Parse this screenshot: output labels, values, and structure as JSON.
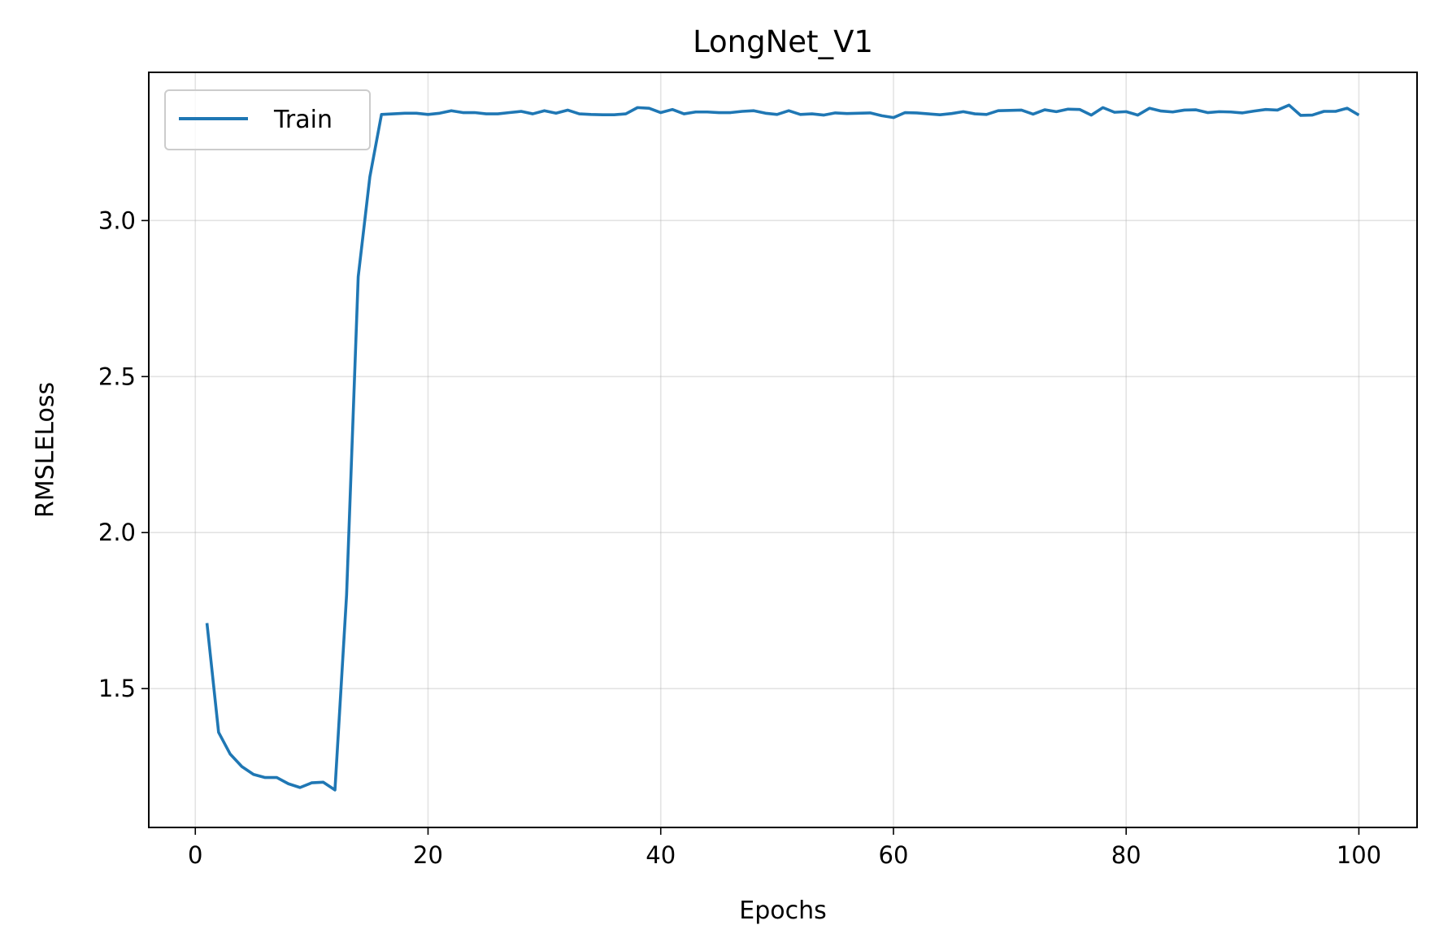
{
  "chart_data": {
    "type": "line",
    "title": "LongNet_V1",
    "xlabel": "Epochs",
    "ylabel": "RMSLELoss",
    "xlim": [
      -4,
      105
    ],
    "ylim": [
      1.055,
      3.475
    ],
    "xticks": [
      0,
      20,
      40,
      60,
      80,
      100
    ],
    "yticks": [
      1.5,
      2.0,
      2.5,
      3.0
    ],
    "xtick_labels": [
      "0",
      "20",
      "40",
      "60",
      "80",
      "100"
    ],
    "ytick_labels": [
      "1.5",
      "2.0",
      "2.5",
      "3.0"
    ],
    "grid": true,
    "legend": {
      "position": "top-left",
      "entries": [
        "Train"
      ]
    },
    "series": [
      {
        "name": "Train",
        "color": "#1f77b4",
        "x": [
          1,
          2,
          3,
          4,
          5,
          6,
          7,
          8,
          9,
          10,
          11,
          12,
          13,
          14,
          15,
          16,
          17,
          18,
          19,
          20,
          21,
          22,
          23,
          24,
          25,
          26,
          27,
          28,
          29,
          30,
          31,
          32,
          33,
          34,
          35,
          36,
          37,
          38,
          39,
          40,
          41,
          42,
          43,
          44,
          45,
          46,
          47,
          48,
          49,
          50,
          51,
          52,
          53,
          54,
          55,
          56,
          57,
          58,
          59,
          60,
          61,
          62,
          63,
          64,
          65,
          66,
          67,
          68,
          69,
          70,
          71,
          72,
          73,
          74,
          75,
          76,
          77,
          78,
          79,
          80,
          81,
          82,
          83,
          84,
          85,
          86,
          87,
          88,
          89,
          90,
          91,
          92,
          93,
          94,
          95,
          96,
          97,
          98,
          99,
          100
        ],
        "values": [
          1.71,
          1.36,
          1.29,
          1.25,
          1.225,
          1.215,
          1.215,
          1.195,
          1.183,
          1.198,
          1.2,
          1.175,
          1.8,
          2.82,
          3.14,
          3.34,
          3.342,
          3.344,
          3.344,
          3.34,
          3.344,
          3.352,
          3.346,
          3.346,
          3.342,
          3.342,
          3.346,
          3.35,
          3.342,
          3.352,
          3.344,
          3.354,
          3.342,
          3.34,
          3.339,
          3.339,
          3.342,
          3.362,
          3.36,
          3.346,
          3.356,
          3.342,
          3.348,
          3.348,
          3.346,
          3.346,
          3.35,
          3.352,
          3.344,
          3.34,
          3.352,
          3.34,
          3.342,
          3.338,
          3.345,
          3.343,
          3.344,
          3.345,
          3.336,
          3.33,
          3.346,
          3.345,
          3.342,
          3.339,
          3.343,
          3.349,
          3.342,
          3.34,
          3.352,
          3.353,
          3.354,
          3.341,
          3.355,
          3.349,
          3.357,
          3.356,
          3.338,
          3.362,
          3.347,
          3.349,
          3.338,
          3.36,
          3.351,
          3.348,
          3.354,
          3.355,
          3.346,
          3.349,
          3.348,
          3.345,
          3.351,
          3.356,
          3.354,
          3.37,
          3.337,
          3.338,
          3.35,
          3.35,
          3.36,
          3.338
        ]
      }
    ]
  }
}
